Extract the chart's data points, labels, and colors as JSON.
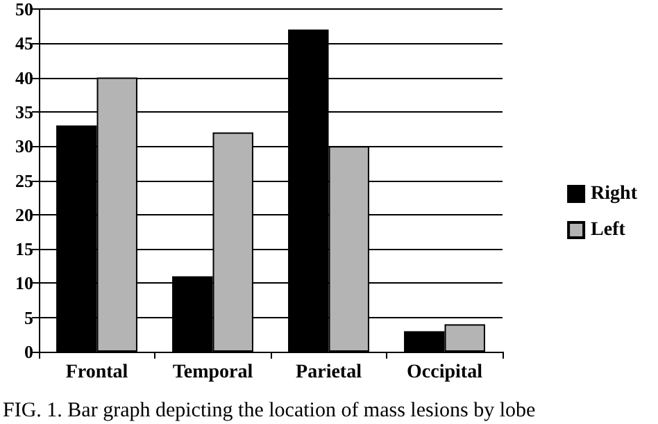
{
  "chart_data": {
    "type": "bar",
    "categories": [
      "Frontal",
      "Temporal",
      "Parietal",
      "Occipital"
    ],
    "series": [
      {
        "name": "Right",
        "color": "#000000",
        "values": [
          33,
          11,
          47,
          3
        ]
      },
      {
        "name": "Left",
        "color": "#b4b4b4",
        "values": [
          40,
          32,
          30,
          4
        ]
      }
    ],
    "ylim": [
      0,
      50
    ],
    "yticks": [
      0,
      5,
      10,
      15,
      20,
      25,
      30,
      35,
      40,
      45,
      50
    ],
    "grid": "y",
    "legend": "right",
    "annotations": [
      "FIG. 1. Bar graph depicting the location of mass lesions by lobe"
    ]
  }
}
